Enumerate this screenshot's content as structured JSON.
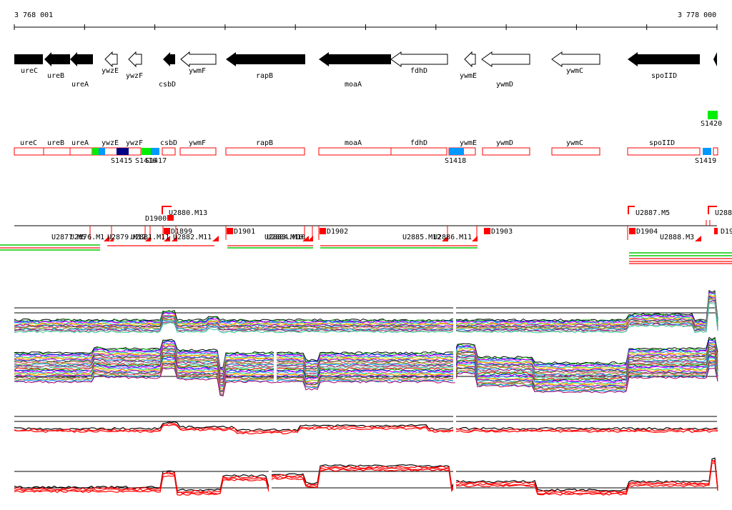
{
  "scale": {
    "start_label": "3 768 001",
    "end_label": "3 778 000"
  },
  "genes": [
    {
      "name": "ureC",
      "filled": true
    },
    {
      "name": "ureB",
      "filled": true
    },
    {
      "name": "ureA",
      "filled": true
    },
    {
      "name": "ywzE",
      "filled": false
    },
    {
      "name": "ywzF",
      "filled": false
    },
    {
      "name": "csbD",
      "filled": true
    },
    {
      "name": "ywmF",
      "filled": false
    },
    {
      "name": "rapB",
      "filled": true
    },
    {
      "name": "moaA",
      "filled": true
    },
    {
      "name": "fdhD",
      "filled": false
    },
    {
      "name": "ywmE",
      "filled": false
    },
    {
      "name": "ywmD",
      "filled": false
    },
    {
      "name": "ywmC",
      "filled": false
    },
    {
      "name": "spoIID",
      "filled": true
    }
  ],
  "segments": [
    {
      "label": "ureC"
    },
    {
      "label": "ureB"
    },
    {
      "label": "ureA"
    },
    {
      "label": "ywzE"
    },
    {
      "label": "ywzF"
    },
    {
      "label": "csbD"
    },
    {
      "label": "ywmF"
    },
    {
      "label": "rapB"
    },
    {
      "label": "moaA"
    },
    {
      "label": "fdhD"
    },
    {
      "label": "ywmE"
    },
    {
      "label": "ywmD"
    },
    {
      "label": "ywmC"
    },
    {
      "label": "spoIID"
    }
  ],
  "s_markers": [
    {
      "label": "S1415",
      "color": "#000080"
    },
    {
      "label": "S1416",
      "color": "#00ee00"
    },
    {
      "label": "S1417",
      "color": "#0099ff"
    },
    {
      "label": "S1418",
      "color": "#0099ff"
    },
    {
      "label": "S1419",
      "color": "#0099ff"
    },
    {
      "label": "S1420",
      "color": "#00ee00"
    }
  ],
  "features_top": [
    {
      "label": "U2880.M13"
    },
    {
      "label": "D1900"
    },
    {
      "label": "U2887.M5"
    },
    {
      "label": "U288"
    }
  ],
  "features_bottom": [
    {
      "label": "U2877.M5"
    },
    {
      "label": "U2876.M1"
    },
    {
      "label": "U2879.M12"
    },
    {
      "label": "U2881.M11"
    },
    {
      "label": "D1899"
    },
    {
      "label": "U2882.M11"
    },
    {
      "label": "D1901"
    },
    {
      "label": "U2883.M10"
    },
    {
      "label": "U2884.M10"
    },
    {
      "label": "D1902"
    },
    {
      "label": "U2885.M12"
    },
    {
      "label": "U2886.M11"
    },
    {
      "label": "D1903"
    },
    {
      "label": "D1904"
    },
    {
      "label": "U2888.M3"
    },
    {
      "label": "D19"
    }
  ],
  "colors": {
    "feature": "#ff0000",
    "segment_border": "#ff0000",
    "gene": "#000000",
    "tick": "#000000"
  }
}
